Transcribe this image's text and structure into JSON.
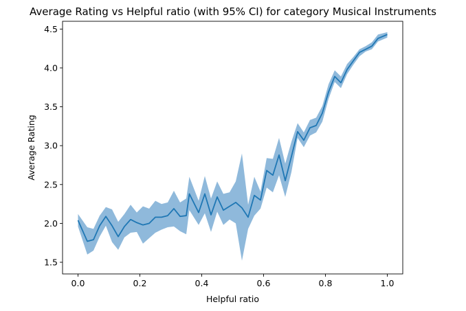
{
  "chart_data": {
    "type": "line",
    "title": "Average Rating vs Helpful ratio (with 95% CI) for category Musical Instruments",
    "xlabel": "Helpful ratio",
    "ylabel": "Average Rating",
    "xlim": [
      -0.05,
      1.05
    ],
    "ylim": [
      1.35,
      4.6
    ],
    "xticks": [
      0.0,
      0.2,
      0.4,
      0.6,
      0.8,
      1.0
    ],
    "xtick_labels": [
      "0.0",
      "0.2",
      "0.4",
      "0.6",
      "0.8",
      "1.0"
    ],
    "yticks": [
      1.5,
      2.0,
      2.5,
      3.0,
      3.5,
      4.0,
      4.5
    ],
    "ytick_labels": [
      "1.5",
      "2.0",
      "2.5",
      "3.0",
      "3.5",
      "4.0",
      "4.5"
    ],
    "grid": false,
    "line_color": "#1f77b4",
    "band_color": "#8fb9db",
    "series": [
      {
        "x": [
          0.0,
          0.03,
          0.05,
          0.07,
          0.09,
          0.11,
          0.13,
          0.15,
          0.17,
          0.19,
          0.21,
          0.23,
          0.25,
          0.27,
          0.29,
          0.31,
          0.33,
          0.35,
          0.36,
          0.39,
          0.41,
          0.43,
          0.45,
          0.47,
          0.49,
          0.51,
          0.53,
          0.55,
          0.57,
          0.59,
          0.61,
          0.63,
          0.65,
          0.67,
          0.69,
          0.71,
          0.73,
          0.75,
          0.77,
          0.79,
          0.81,
          0.83,
          0.85,
          0.87,
          0.89,
          0.91,
          0.93,
          0.95,
          0.97,
          1.0
        ],
        "y": [
          2.04,
          1.77,
          1.79,
          1.97,
          2.09,
          1.97,
          1.83,
          1.96,
          2.05,
          2.01,
          1.98,
          2.0,
          2.08,
          2.08,
          2.1,
          2.19,
          2.09,
          2.1,
          2.38,
          2.14,
          2.38,
          2.11,
          2.34,
          2.17,
          2.22,
          2.27,
          2.2,
          2.08,
          2.36,
          2.3,
          2.68,
          2.62,
          2.88,
          2.55,
          2.86,
          3.18,
          3.07,
          3.23,
          3.26,
          3.42,
          3.69,
          3.89,
          3.81,
          3.98,
          4.09,
          4.2,
          4.24,
          4.28,
          4.38,
          4.43
        ],
        "lower": [
          1.96,
          1.6,
          1.65,
          1.83,
          1.97,
          1.76,
          1.66,
          1.82,
          1.88,
          1.89,
          1.74,
          1.81,
          1.88,
          1.92,
          1.95,
          1.96,
          1.9,
          1.86,
          2.17,
          1.98,
          2.13,
          1.89,
          2.15,
          1.98,
          2.05,
          2.0,
          1.52,
          1.93,
          2.1,
          2.19,
          2.46,
          2.4,
          2.62,
          2.34,
          2.66,
          3.1,
          2.98,
          3.13,
          3.17,
          3.31,
          3.6,
          3.82,
          3.74,
          3.92,
          4.04,
          4.15,
          4.21,
          4.24,
          4.34,
          4.39
        ],
        "upper": [
          2.12,
          1.95,
          1.93,
          2.1,
          2.21,
          2.18,
          2.02,
          2.12,
          2.24,
          2.14,
          2.22,
          2.19,
          2.29,
          2.25,
          2.27,
          2.42,
          2.27,
          2.32,
          2.6,
          2.29,
          2.61,
          2.32,
          2.54,
          2.38,
          2.4,
          2.54,
          2.9,
          2.24,
          2.6,
          2.41,
          2.84,
          2.83,
          3.1,
          2.77,
          3.05,
          3.29,
          3.17,
          3.33,
          3.36,
          3.51,
          3.79,
          3.97,
          3.89,
          4.05,
          4.14,
          4.24,
          4.28,
          4.33,
          4.43,
          4.46
        ]
      }
    ]
  }
}
